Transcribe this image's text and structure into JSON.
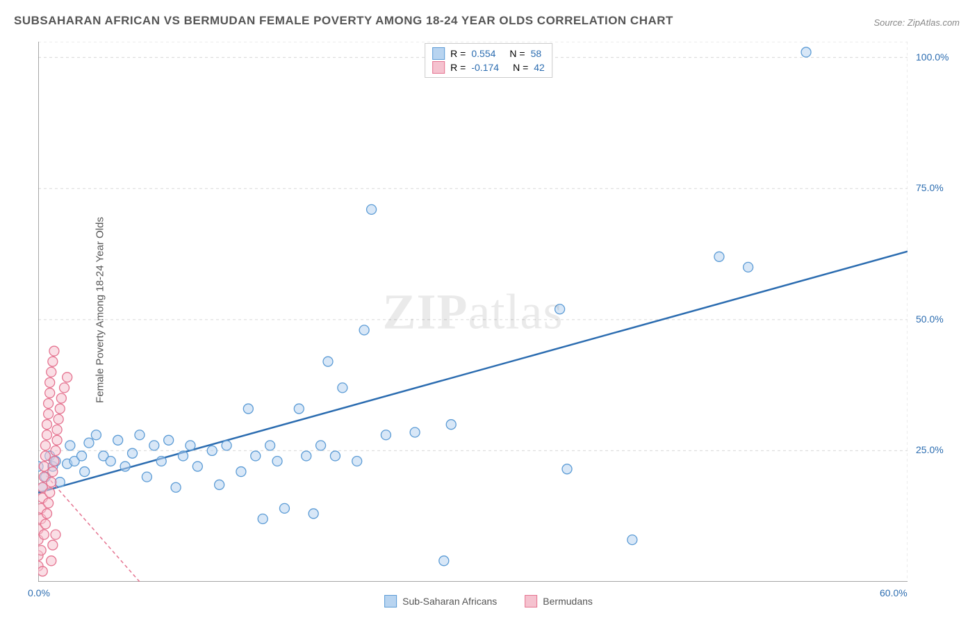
{
  "title": "SUBSAHARAN AFRICAN VS BERMUDAN FEMALE POVERTY AMONG 18-24 YEAR OLDS CORRELATION CHART",
  "source": "Source: ZipAtlas.com",
  "ylabel": "Female Poverty Among 18-24 Year Olds",
  "watermark_part1": "ZIP",
  "watermark_part2": "atlas",
  "chart": {
    "type": "scatter",
    "xlim": [
      0,
      60
    ],
    "ylim": [
      0,
      103
    ],
    "xtick_labels": {
      "0": "0.0%",
      "60": "60.0%"
    },
    "ytick_labels": {
      "25": "25.0%",
      "50": "50.0%",
      "75": "75.0%",
      "100": "100.0%"
    },
    "grid_color": "#d8d8d8",
    "grid_dash": "4 4",
    "axis_color": "#888888",
    "background": "#ffffff",
    "marker_radius": 7,
    "marker_stroke_width": 1.3,
    "series": [
      {
        "name": "Sub-Saharan Africans",
        "fill": "#b8d4f0",
        "stroke": "#5b9bd5",
        "fill_opacity": 0.55,
        "r_value": "0.554",
        "n_value": "58",
        "r_label": "R =",
        "n_label": "N =",
        "trend": {
          "x1": 0,
          "y1": 17,
          "x2": 60,
          "y2": 63,
          "color": "#2b6cb0",
          "width": 2.5,
          "dash": "none"
        },
        "points": [
          [
            0,
            22
          ],
          [
            0.3,
            18
          ],
          [
            0.5,
            20
          ],
          [
            0.8,
            24
          ],
          [
            1,
            22
          ],
          [
            1.2,
            23
          ],
          [
            1.5,
            19
          ],
          [
            2,
            22.5
          ],
          [
            2.2,
            26
          ],
          [
            2.5,
            23
          ],
          [
            3,
            24
          ],
          [
            3.2,
            21
          ],
          [
            3.5,
            26.5
          ],
          [
            4,
            28
          ],
          [
            4.5,
            24
          ],
          [
            5,
            23
          ],
          [
            5.5,
            27
          ],
          [
            6,
            22
          ],
          [
            6.5,
            24.5
          ],
          [
            7,
            28
          ],
          [
            7.5,
            20
          ],
          [
            8,
            26
          ],
          [
            8.5,
            23
          ],
          [
            9,
            27
          ],
          [
            9.5,
            18
          ],
          [
            10,
            24
          ],
          [
            10.5,
            26
          ],
          [
            11,
            22
          ],
          [
            12,
            25
          ],
          [
            12.5,
            18.5
          ],
          [
            13,
            26
          ],
          [
            14,
            21
          ],
          [
            14.5,
            33
          ],
          [
            15,
            24
          ],
          [
            15.5,
            12
          ],
          [
            16,
            26
          ],
          [
            16.5,
            23
          ],
          [
            17,
            14
          ],
          [
            18,
            33
          ],
          [
            18.5,
            24
          ],
          [
            19,
            13
          ],
          [
            19.5,
            26
          ],
          [
            20,
            42
          ],
          [
            20.5,
            24
          ],
          [
            21,
            37
          ],
          [
            22,
            23
          ],
          [
            22.5,
            48
          ],
          [
            23,
            71
          ],
          [
            24,
            28
          ],
          [
            26,
            28.5
          ],
          [
            28,
            4
          ],
          [
            28.5,
            30
          ],
          [
            36,
            52
          ],
          [
            36.5,
            21.5
          ],
          [
            41,
            8
          ],
          [
            47,
            62
          ],
          [
            49,
            60
          ],
          [
            53,
            101
          ]
        ]
      },
      {
        "name": "Bermudans",
        "fill": "#f5c2cf",
        "stroke": "#e57390",
        "fill_opacity": 0.55,
        "r_value": "-0.174",
        "n_value": "42",
        "r_label": "R =",
        "n_label": "N =",
        "trend": {
          "x1": 0,
          "y1": 22,
          "x2": 7,
          "y2": 0,
          "color": "#e57390",
          "width": 1.5,
          "dash": "5 4"
        },
        "points": [
          [
            0,
            3
          ],
          [
            0,
            5
          ],
          [
            0,
            8
          ],
          [
            0,
            10
          ],
          [
            0.2,
            12
          ],
          [
            0.2,
            14
          ],
          [
            0.2,
            6
          ],
          [
            0.3,
            16
          ],
          [
            0.3,
            2
          ],
          [
            0.3,
            18
          ],
          [
            0.4,
            20
          ],
          [
            0.4,
            9
          ],
          [
            0.4,
            22
          ],
          [
            0.5,
            24
          ],
          [
            0.5,
            11
          ],
          [
            0.5,
            26
          ],
          [
            0.6,
            28
          ],
          [
            0.6,
            13
          ],
          [
            0.6,
            30
          ],
          [
            0.7,
            32
          ],
          [
            0.7,
            15
          ],
          [
            0.7,
            34
          ],
          [
            0.8,
            36
          ],
          [
            0.8,
            17
          ],
          [
            0.8,
            38
          ],
          [
            0.9,
            40
          ],
          [
            0.9,
            19
          ],
          [
            0.9,
            4
          ],
          [
            1,
            42
          ],
          [
            1,
            21
          ],
          [
            1,
            7
          ],
          [
            1.1,
            44
          ],
          [
            1.1,
            23
          ],
          [
            1.2,
            25
          ],
          [
            1.2,
            9
          ],
          [
            1.3,
            27
          ],
          [
            1.3,
            29
          ],
          [
            1.4,
            31
          ],
          [
            1.5,
            33
          ],
          [
            1.6,
            35
          ],
          [
            1.8,
            37
          ],
          [
            2,
            39
          ]
        ]
      }
    ]
  },
  "legend_top": {
    "r_color": "#2b6cb0",
    "n_color": "#2b6cb0",
    "label_color": "#555555"
  },
  "legend_bottom": {
    "items": [
      {
        "label": "Sub-Saharan Africans",
        "fill": "#b8d4f0",
        "stroke": "#5b9bd5"
      },
      {
        "label": "Bermudans",
        "fill": "#f5c2cf",
        "stroke": "#e57390"
      }
    ]
  },
  "axis_label_colors": {
    "x": "#2b6cb0",
    "y": "#2b6cb0"
  }
}
